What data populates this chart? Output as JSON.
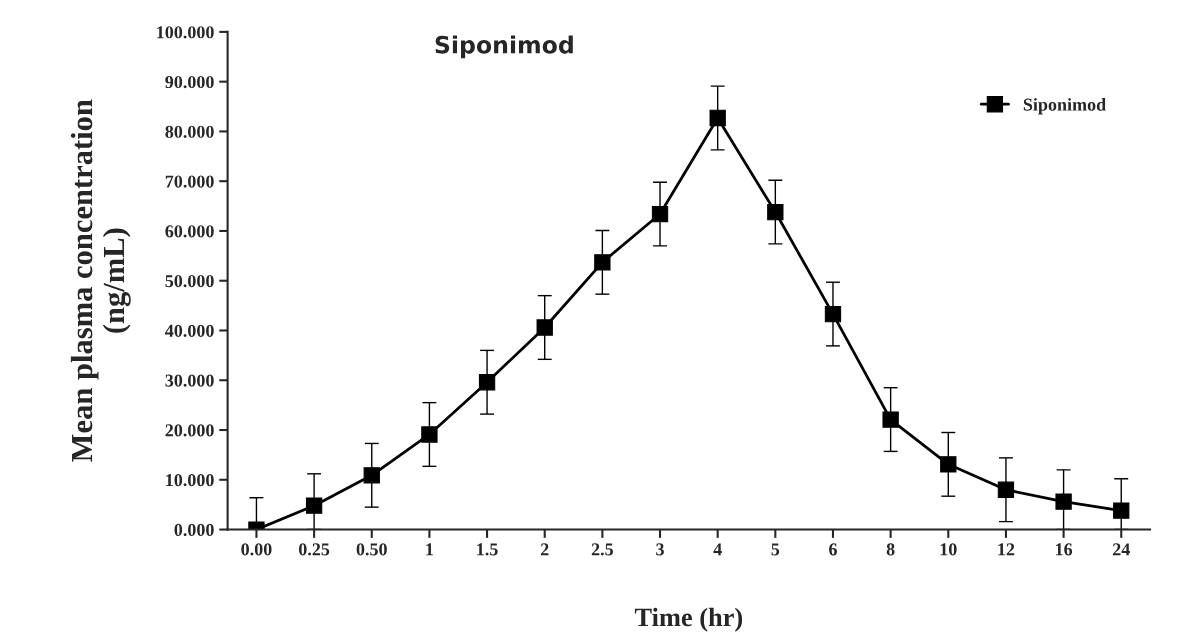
{
  "chart_data": {
    "type": "line",
    "title": "Siponimod",
    "xlabel": "Time (hr)",
    "ylabel": "Mean plasma concentration\n(ng/mL)",
    "categories": [
      "0.00",
      "0.25",
      "0.50",
      "1",
      "1.5",
      "2",
      "2.5",
      "3",
      "4",
      "5",
      "6",
      "8",
      "10",
      "12",
      "16",
      "24"
    ],
    "series": [
      {
        "name": "Siponimod",
        "color": "#000000",
        "values": [
          0,
          4.8,
          10.9,
          19.1,
          29.6,
          40.6,
          53.7,
          63.4,
          82.7,
          63.8,
          43.3,
          22.1,
          13.1,
          8.0,
          5.6,
          3.8
        ],
        "errors": [
          [
            0,
            6.4
          ],
          [
            0,
            11.2
          ],
          6.4,
          6.4,
          6.4,
          6.4,
          6.4,
          6.4,
          6.4,
          6.4,
          6.4,
          6.4,
          6.4,
          6.4,
          [
            0,
            12.0
          ],
          [
            0,
            10.2
          ]
        ]
      }
    ],
    "ylim": [
      0,
      100
    ],
    "yticks": [
      {
        "value": 0,
        "label": "0.000"
      },
      {
        "value": 10,
        "label": "10.000"
      },
      {
        "value": 20,
        "label": "20.000"
      },
      {
        "value": 30,
        "label": "30.000"
      },
      {
        "value": 40,
        "label": "40.000"
      },
      {
        "value": 50,
        "label": "50.000"
      },
      {
        "value": 60,
        "label": "60.000"
      },
      {
        "value": 70,
        "label": "70.000"
      },
      {
        "value": 80,
        "label": "80.000"
      },
      {
        "value": 90,
        "label": "90.000"
      },
      {
        "value": 100,
        "label": "100.000"
      }
    ],
    "marker": "square",
    "line_style": "solid",
    "legend": "top right",
    "grid": false
  }
}
